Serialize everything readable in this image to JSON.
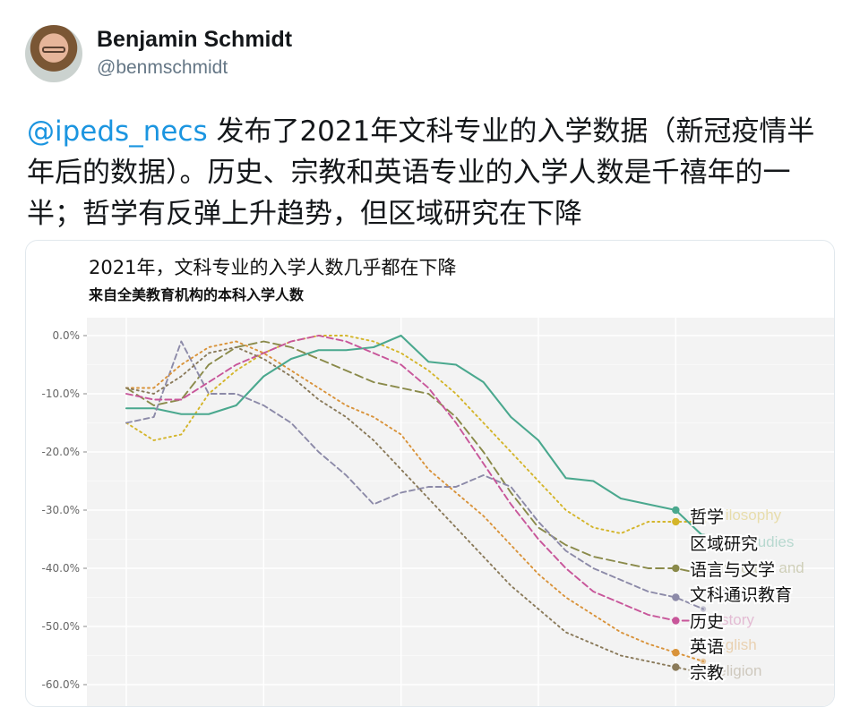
{
  "tweet": {
    "author_name": "Benjamin Schmidt",
    "author_handle": "@benmschmidt",
    "mention": "@ipeds_necs",
    "body": " 发布了2021年文科专业的入学数据（新冠疫情半年后的数据）。历史、宗教和英语专业的入学人数是千禧年的一半；哲学有反弹上升趋势，但区域研究在下降"
  },
  "icons": {
    "avatar": "profile-photo"
  },
  "chart_data": {
    "type": "line",
    "title": "2021年，文科专业的入学人数几乎都在下降",
    "subtitle": "来自全美教育机构的本科入学人数",
    "ylabel": "",
    "ylim": [
      -60,
      0
    ],
    "yticks": [
      0,
      -10,
      -20,
      -30,
      -40,
      -50,
      -60
    ],
    "ytick_labels": [
      "0.0%",
      "-10.0%",
      "-20.0%",
      "-30.0%",
      "-40.0%",
      "-50.0%",
      "-60.0%"
    ],
    "xlim": [
      2000,
      2021
    ],
    "grid": true,
    "x": [
      2000,
      2001,
      2002,
      2003,
      2004,
      2005,
      2006,
      2007,
      2008,
      2009,
      2010,
      2011,
      2012,
      2013,
      2014,
      2015,
      2016,
      2017,
      2018,
      2019,
      2020,
      2021
    ],
    "series": [
      {
        "name": "哲学",
        "ghost": "Philosophy",
        "color": "#d4b52a",
        "dash": "2,4",
        "values": [
          -15,
          -18,
          -17,
          -10,
          -6,
          -3,
          -1,
          0,
          0,
          -1,
          -3,
          -6,
          -10,
          -15,
          -20,
          -25,
          -30,
          -33,
          -34,
          -32,
          -32,
          -32
        ]
      },
      {
        "name": "区域研究",
        "ghost": "Area Studies",
        "color": "#4aa88e",
        "dash": "",
        "values": [
          -12.5,
          -12.5,
          -13.5,
          -13.5,
          -12,
          -7,
          -4,
          -2.5,
          -2.5,
          -2,
          0,
          -4.5,
          -5,
          -8,
          -14,
          -18,
          -24.5,
          -25,
          -28,
          -29,
          -30,
          -34.5
        ]
      },
      {
        "name": "语言与文学",
        "ghost": "Language and",
        "color": "#8a8a4a",
        "dash": "9,5",
        "values": [
          -9,
          -12,
          -11,
          -5,
          -2,
          -1,
          -2,
          -4,
          -6,
          -8,
          -9,
          -10,
          -14,
          -20,
          -27,
          -33,
          -36,
          -38,
          -39,
          -40,
          -40,
          -41
        ]
      },
      {
        "name": "文科通识教育",
        "ghost": "Liberal",
        "color": "#8c8aa8",
        "dash": "6,4",
        "values": [
          -15,
          -14,
          -1,
          -10,
          -10,
          -12,
          -15,
          -20,
          -24,
          -29,
          -27,
          -26,
          -26,
          -24,
          -26,
          -32,
          -37,
          -40,
          -42,
          -44,
          -45,
          -47
        ]
      },
      {
        "name": "历史",
        "ghost": "History",
        "color": "#c8569a",
        "dash": "7,4",
        "values": [
          -10,
          -11,
          -11,
          -8,
          -5,
          -3,
          -1,
          0,
          -1,
          -3,
          -5,
          -9,
          -15,
          -22,
          -29,
          -35,
          -40,
          -44,
          -46,
          -48,
          -49,
          -49
        ]
      },
      {
        "name": "英语",
        "ghost": "English",
        "color": "#d9933a",
        "dash": "2,4",
        "values": [
          -9,
          -9,
          -5,
          -2,
          -1,
          -3,
          -6,
          -9,
          -12,
          -14,
          -17,
          -23,
          -27,
          -31,
          -36,
          -41,
          -45,
          -48,
          -51,
          -53,
          -54.5,
          -56
        ]
      },
      {
        "name": "宗教",
        "ghost": "Religion",
        "color": "#8a7a5a",
        "dash": "2,4",
        "values": [
          -9,
          -10,
          -7,
          -3,
          -2,
          -4,
          -7,
          -11,
          -14,
          -18,
          -23,
          -28,
          -33,
          -38,
          -43,
          -47,
          -51,
          -53,
          -55,
          -56,
          -57,
          -58
        ]
      }
    ]
  }
}
